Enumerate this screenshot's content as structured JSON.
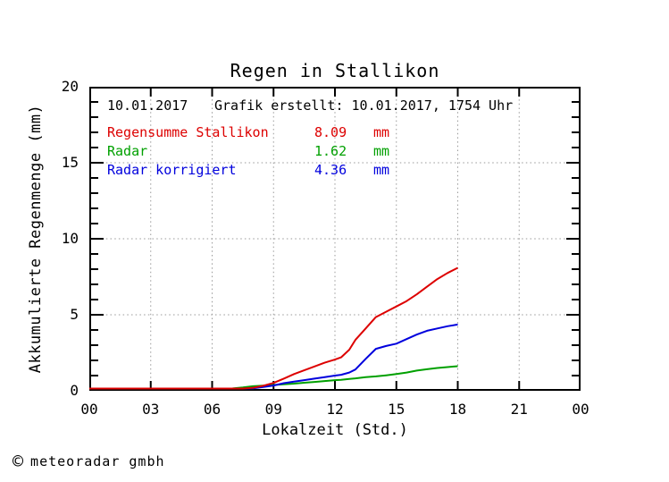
{
  "title": "Regen in Stallikon",
  "annotation": {
    "date": "10.01.2017",
    "created": "Grafik erstellt: 10.01.2017, 1754 Uhr"
  },
  "legend": [
    {
      "label": "Regensumme Stallikon",
      "value": "8.09",
      "unit": "mm",
      "color": "#dd0000"
    },
    {
      "label": "Radar",
      "value": "1.62",
      "unit": "mm",
      "color": "#00a000"
    },
    {
      "label": "Radar korrigiert",
      "value": "4.36",
      "unit": "mm",
      "color": "#0000dd"
    }
  ],
  "axes": {
    "x": {
      "label": "Lokalzeit (Std.)",
      "ticks": [
        "00",
        "03",
        "06",
        "09",
        "12",
        "15",
        "18",
        "21",
        "00"
      ],
      "range": [
        0,
        24
      ],
      "major_step": 3
    },
    "y": {
      "label": "Akkumulierte Regenmenge (mm)",
      "ticks": [
        "0",
        "5",
        "10",
        "15",
        "20"
      ],
      "range": [
        0,
        20
      ],
      "major_step": 5,
      "minor_step": 1
    }
  },
  "footer": {
    "copyright_symbol": "©",
    "text": "meteoradar gmbh"
  },
  "colors": {
    "frame": "#000000",
    "grid": "#999999",
    "background": "#ffffff"
  },
  "chart_data": {
    "type": "line",
    "title": "Regen in Stallikon",
    "xlabel": "Lokalzeit (Std.)",
    "ylabel": "Akkumulierte Regenmenge (mm)",
    "xlim": [
      0,
      24
    ],
    "ylim": [
      0,
      20
    ],
    "grid": "dotted, vertical every 3 h, horizontal every 5 mm",
    "legend_position": "top-left inside plot",
    "x_hours": [
      0,
      6,
      6.5,
      7,
      7.5,
      8,
      8.5,
      9,
      9.5,
      10,
      10.5,
      11,
      11.5,
      12,
      12.3,
      12.7,
      13,
      13.5,
      14,
      14.5,
      15,
      15.5,
      16,
      16.5,
      17,
      17.5,
      18
    ],
    "series": [
      {
        "name": "Regensumme Stallikon",
        "color": "#dd0000",
        "total_mm": 8.09,
        "values": [
          0,
          0,
          0.03,
          0.08,
          0.13,
          0.2,
          0.33,
          0.52,
          0.8,
          1.1,
          1.35,
          1.6,
          1.85,
          2.05,
          2.2,
          2.7,
          3.35,
          4.1,
          4.85,
          5.2,
          5.55,
          5.9,
          6.35,
          6.85,
          7.35,
          7.75,
          8.09
        ]
      },
      {
        "name": "Radar",
        "color": "#00a000",
        "total_mm": 1.62,
        "values": [
          0,
          0,
          0.08,
          0.15,
          0.22,
          0.3,
          0.34,
          0.38,
          0.43,
          0.47,
          0.53,
          0.58,
          0.64,
          0.7,
          0.72,
          0.78,
          0.82,
          0.9,
          0.95,
          1.02,
          1.1,
          1.2,
          1.33,
          1.42,
          1.5,
          1.56,
          1.62
        ]
      },
      {
        "name": "Radar korrigiert",
        "color": "#0000dd",
        "total_mm": 4.36,
        "values": [
          0,
          0,
          0.02,
          0.05,
          0.1,
          0.16,
          0.25,
          0.35,
          0.5,
          0.6,
          0.7,
          0.8,
          0.9,
          1.0,
          1.05,
          1.2,
          1.4,
          2.1,
          2.76,
          2.95,
          3.1,
          3.4,
          3.7,
          3.95,
          4.1,
          4.25,
          4.36
        ]
      }
    ]
  }
}
